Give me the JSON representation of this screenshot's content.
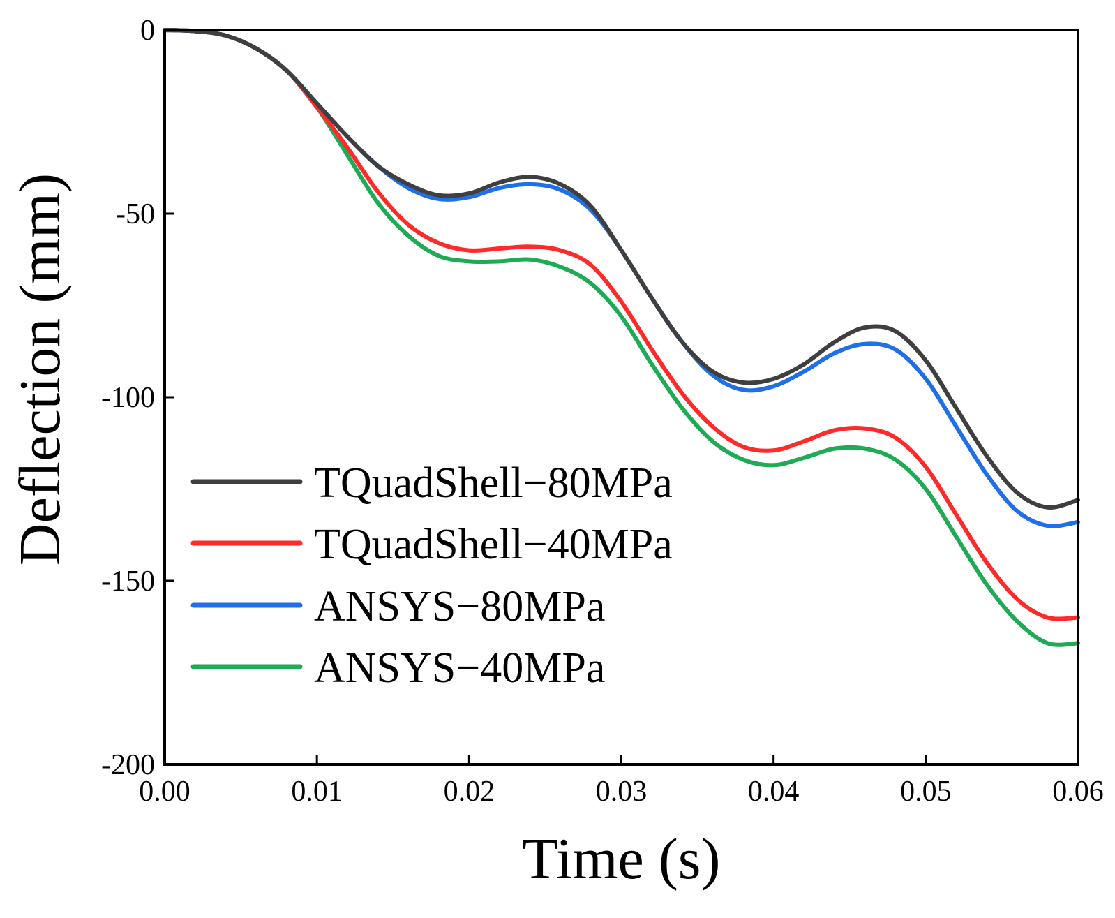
{
  "chart_data": {
    "type": "line",
    "title": "",
    "xlabel": "Time (s)",
    "ylabel": "Deflection (mm)",
    "xlim": [
      0,
      0.06
    ],
    "ylim": [
      -200,
      0
    ],
    "grid": false,
    "legend_position": "center-left",
    "x_ticks": [
      "0.00",
      "0.01",
      "0.02",
      "0.03",
      "0.04",
      "0.05",
      "0.06"
    ],
    "y_ticks": [
      "0",
      "-50",
      "-100",
      "-150",
      "-200"
    ],
    "x_tick_values": [
      0,
      0.01,
      0.02,
      0.03,
      0.04,
      0.05,
      0.06
    ],
    "y_tick_values": [
      0,
      -50,
      -100,
      -150,
      -200
    ],
    "x": [
      0,
      0.002,
      0.004,
      0.006,
      0.008,
      0.01,
      0.012,
      0.014,
      0.016,
      0.018,
      0.02,
      0.022,
      0.024,
      0.026,
      0.028,
      0.03,
      0.032,
      0.034,
      0.036,
      0.038,
      0.04,
      0.042,
      0.044,
      0.046,
      0.048,
      0.05,
      0.052,
      0.054,
      0.056,
      0.058,
      0.06
    ],
    "series": [
      {
        "name": "TQuadShell−80MPa",
        "color": "#3f3f3f",
        "values": [
          0,
          -0.3,
          -1.5,
          -5,
          -11,
          -20,
          -29,
          -37,
          -42,
          -45,
          -44.5,
          -41.5,
          -40,
          -42,
          -48,
          -60,
          -73,
          -85,
          -93,
          -96,
          -95,
          -91,
          -85,
          -81,
          -82,
          -90,
          -103,
          -116,
          -126,
          -130,
          -128
        ]
      },
      {
        "name": "TQuadShell−40MPa",
        "color": "#ff2a2a",
        "values": [
          0,
          -0.3,
          -1.5,
          -5,
          -11,
          -21,
          -32,
          -44,
          -53,
          -58,
          -60,
          -59.5,
          -59,
          -60,
          -64,
          -74,
          -87,
          -99,
          -108,
          -113.5,
          -114.5,
          -112,
          -109,
          -108.5,
          -111,
          -119,
          -132,
          -145,
          -155,
          -160,
          -160
        ]
      },
      {
        "name": "ANSYS−80MPa",
        "color": "#1f6fe8",
        "values": [
          0,
          -0.3,
          -1.5,
          -5,
          -11,
          -20,
          -29,
          -37,
          -43,
          -46,
          -45.5,
          -43,
          -42,
          -43.5,
          -49,
          -60,
          -73,
          -85,
          -94,
          -98,
          -97,
          -93,
          -88,
          -85.5,
          -87,
          -95,
          -108,
          -121,
          -131,
          -135,
          -134
        ]
      },
      {
        "name": "ANSYS−40MPa",
        "color": "#1faa55",
        "values": [
          0,
          -0.3,
          -1.5,
          -5,
          -11,
          -21,
          -34,
          -47,
          -56,
          -61.5,
          -63,
          -63,
          -62.5,
          -64.5,
          -69,
          -78,
          -91,
          -103,
          -112,
          -117,
          -118.5,
          -116.5,
          -114,
          -114,
          -117,
          -125,
          -138,
          -151,
          -161,
          -167,
          -167
        ]
      }
    ]
  }
}
